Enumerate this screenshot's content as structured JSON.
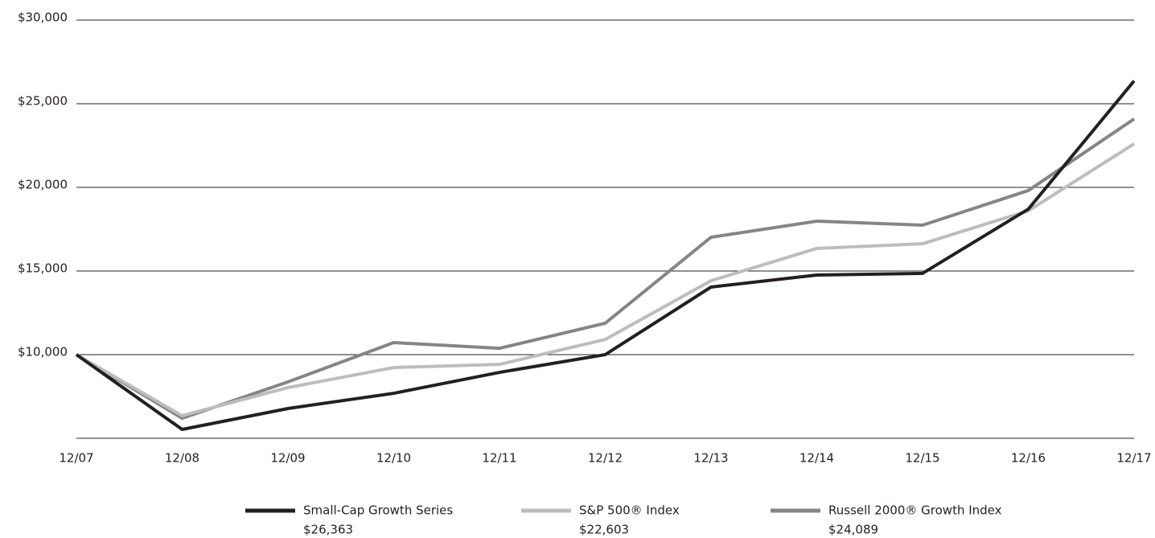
{
  "chart_data": {
    "type": "line",
    "categories": [
      "12/07",
      "12/08",
      "12/09",
      "12/10",
      "12/11",
      "12/12",
      "12/13",
      "12/14",
      "12/15",
      "12/16",
      "12/17"
    ],
    "series": [
      {
        "name": "Small-Cap Growth Series",
        "color": "#231f20",
        "ending_label": "$26,363",
        "values": [
          10000,
          5530,
          6780,
          7690,
          8940,
          10000,
          14040,
          14760,
          14860,
          18700,
          26363
        ]
      },
      {
        "name": "S&P 500® Index",
        "color": "#bdbdbd",
        "ending_label": "$22,603",
        "values": [
          10000,
          6350,
          8030,
          9230,
          9420,
          10910,
          14420,
          16350,
          16630,
          18600,
          22603
        ]
      },
      {
        "name": "Russell 2000® Growth Index",
        "color": "#858585",
        "ending_label": "$24,089",
        "values": [
          10000,
          6200,
          8370,
          10720,
          10380,
          11880,
          17020,
          17980,
          17740,
          19810,
          24089
        ]
      }
    ],
    "ylim": [
      5000,
      30000
    ],
    "yticks": [
      {
        "value": 10000,
        "label": "$10,000"
      },
      {
        "value": 15000,
        "label": "$15,000"
      },
      {
        "value": 20000,
        "label": "$20,000"
      },
      {
        "value": 25000,
        "label": "$25,000"
      },
      {
        "value": 30000,
        "label": "$30,000"
      }
    ],
    "grid": true
  }
}
